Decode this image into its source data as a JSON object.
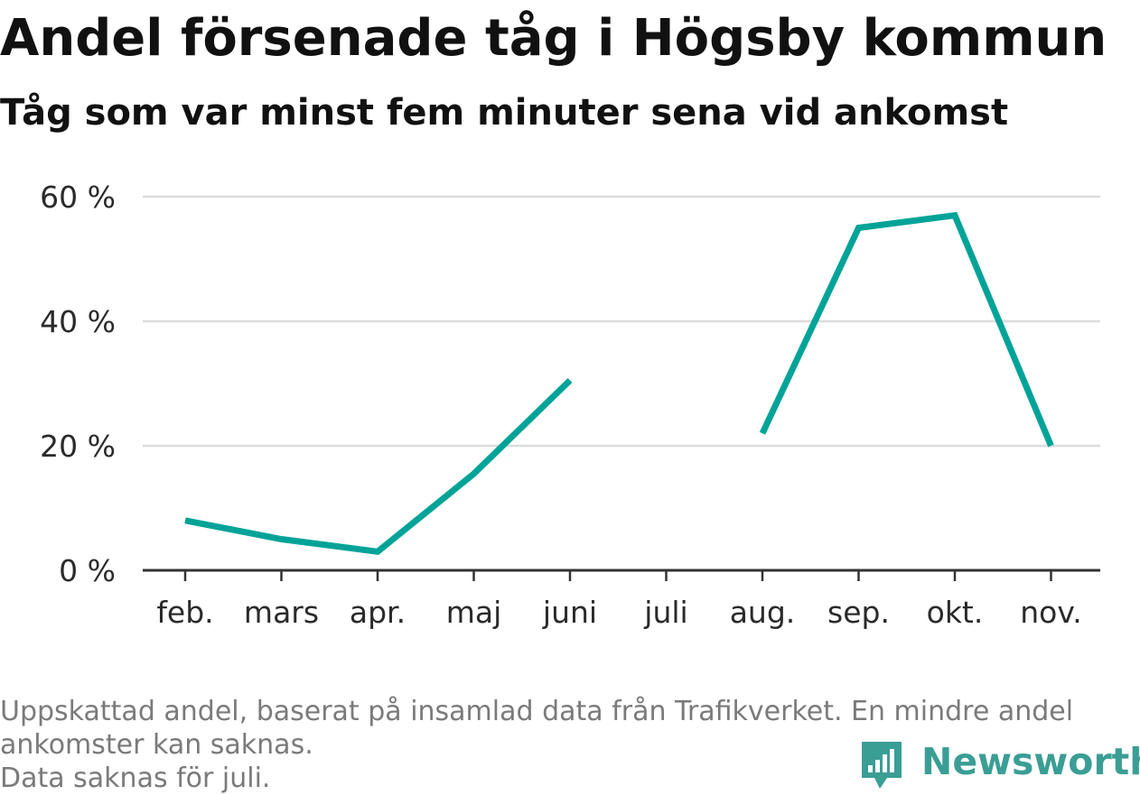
{
  "chart_data": {
    "type": "line",
    "title": "Andel försenade tåg i Högsby kommun",
    "subtitle": "Tåg som var minst fem minuter sena vid ankomst",
    "categories": [
      "feb.",
      "mars",
      "apr.",
      "maj",
      "juni",
      "juli",
      "aug.",
      "sep.",
      "okt.",
      "nov."
    ],
    "series": [
      {
        "values": [
          8,
          5,
          3,
          15.5,
          30.5,
          null,
          22,
          55,
          57,
          20
        ]
      }
    ],
    "y_ticks": [
      "0 %",
      "20 %",
      "40 %",
      "60 %"
    ],
    "y_tick_values": [
      0,
      20,
      40,
      60
    ],
    "ylim": [
      0,
      60
    ],
    "grid": true,
    "line_color": "#00a398"
  },
  "footer": {
    "note_line1": "Uppskattad andel, baserat på insamlad data från Trafikverket. En mindre andel",
    "note_line2": "ankomster kan saknas.",
    "note_line3": "Data saknas för juli."
  },
  "brand": {
    "name": "Newsworthy",
    "color": "#3a9e95",
    "icon": "newsworthy-logo-icon"
  }
}
